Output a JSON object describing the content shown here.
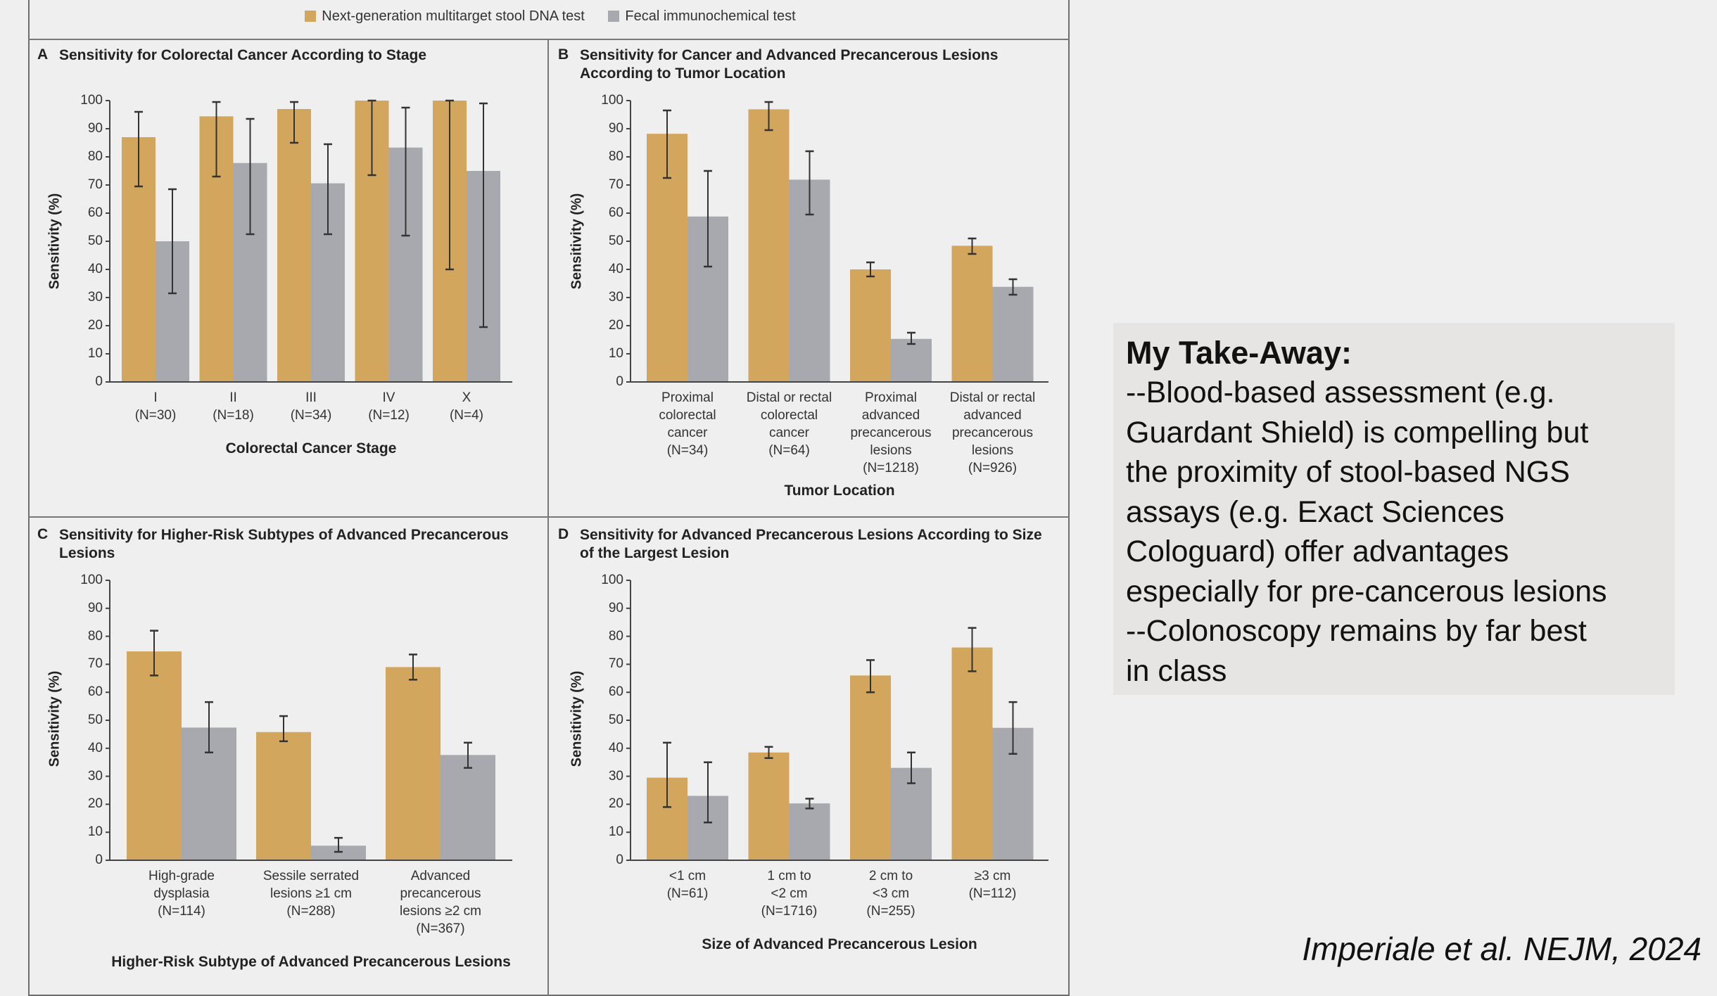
{
  "legend": {
    "items": [
      {
        "label": "Next-generation multitarget stool DNA test",
        "color": "#d3a65e"
      },
      {
        "label": "Fecal immunochemical test",
        "color": "#a8a9ae"
      }
    ]
  },
  "chart_data": [
    {
      "type": "bar",
      "panel_label": "A",
      "title": "Sensitivity for Colorectal Cancer According to Stage",
      "xlabel": "Colorectal Cancer Stage",
      "ylabel": "Sensitivity (%)",
      "ylim": [
        0,
        100
      ],
      "yticks": [
        "0",
        "10",
        "20",
        "30",
        "40",
        "50",
        "60",
        "70",
        "80",
        "90",
        "100"
      ],
      "categories": [
        "I\n(N=30)",
        "II\n(N=18)",
        "III\n(N=34)",
        "IV\n(N=12)",
        "X\n(N=4)"
      ],
      "series": [
        {
          "name": "Next-generation multitarget stool DNA test",
          "values": [
            87,
            94.4,
            97,
            100,
            100
          ],
          "ci_low": [
            69.5,
            73,
            85,
            73.5,
            40
          ],
          "ci_high": [
            96,
            99.5,
            99.5,
            100,
            100
          ]
        },
        {
          "name": "Fecal immunochemical test",
          "values": [
            50,
            77.8,
            70.6,
            83.3,
            75
          ],
          "ci_low": [
            31.5,
            52.5,
            52.5,
            52,
            19.5
          ],
          "ci_high": [
            68.5,
            93.5,
            84.5,
            97.5,
            99
          ]
        }
      ]
    },
    {
      "type": "bar",
      "panel_label": "B",
      "title": "Sensitivity for Cancer and Advanced Precancerous Lesions According to Tumor Location",
      "xlabel": "Tumor Location",
      "ylabel": "Sensitivity (%)",
      "ylim": [
        0,
        100
      ],
      "yticks": [
        "0",
        "10",
        "20",
        "30",
        "40",
        "50",
        "60",
        "70",
        "80",
        "90",
        "100"
      ],
      "categories": [
        "Proximal\ncolorectal\ncancer\n(N=34)",
        "Distal or rectal\ncolorectal\ncancer\n(N=64)",
        "Proximal\nadvanced\nprecancerous\nlesions\n(N=1218)",
        "Distal or rectal\nadvanced\nprecancerous\nlesions\n(N=926)"
      ],
      "series": [
        {
          "name": "Next-generation multitarget stool DNA test",
          "values": [
            88.2,
            96.9,
            40,
            48.4
          ],
          "ci_low": [
            72.5,
            89.5,
            37.5,
            45.5
          ],
          "ci_high": [
            96.5,
            99.5,
            42.5,
            51
          ]
        },
        {
          "name": "Fecal immunochemical test",
          "values": [
            58.8,
            71.9,
            15.3,
            33.8
          ],
          "ci_low": [
            41,
            59.5,
            13.5,
            31
          ],
          "ci_high": [
            75,
            82,
            17.5,
            36.5
          ]
        }
      ]
    },
    {
      "type": "bar",
      "panel_label": "C",
      "title": "Sensitivity for Higher-Risk Subtypes of Advanced Precancerous Lesions",
      "xlabel": "Higher-Risk Subtype of Advanced Precancerous Lesions",
      "ylabel": "Sensitivity (%)",
      "ylim": [
        0,
        100
      ],
      "yticks": [
        "0",
        "10",
        "20",
        "30",
        "40",
        "50",
        "60",
        "70",
        "80",
        "90",
        "100"
      ],
      "categories": [
        "High-grade\ndysplasia\n(N=114)",
        "Sessile serrated\nlesions ≥1 cm\n(N=288)",
        "Advanced\nprecancerous\nlesions ≥2 cm\n(N=367)"
      ],
      "series": [
        {
          "name": "Next-generation multitarget stool DNA test",
          "values": [
            74.6,
            45.8,
            69
          ],
          "ci_low": [
            66,
            42.5,
            64.5
          ],
          "ci_high": [
            82,
            51.5,
            73.5
          ]
        },
        {
          "name": "Fecal immunochemical test",
          "values": [
            47.4,
            5.2,
            37.6
          ],
          "ci_low": [
            38.5,
            3,
            33
          ],
          "ci_high": [
            56.5,
            8,
            42
          ]
        }
      ]
    },
    {
      "type": "bar",
      "panel_label": "D",
      "title": "Sensitivity for Advanced Precancerous Lesions According to Size of the Largest Lesion",
      "xlabel": "Size of Advanced Precancerous Lesion",
      "ylabel": "Sensitivity (%)",
      "ylim": [
        0,
        100
      ],
      "yticks": [
        "0",
        "10",
        "20",
        "30",
        "40",
        "50",
        "60",
        "70",
        "80",
        "90",
        "100"
      ],
      "categories": [
        "<1 cm\n(N=61)",
        "1 cm to\n<2 cm\n(N=1716)",
        "2 cm to\n<3 cm\n(N=255)",
        "≥3 cm\n(N=112)"
      ],
      "series": [
        {
          "name": "Next-generation multitarget stool DNA test",
          "values": [
            29.5,
            38.5,
            66,
            76
          ],
          "ci_low": [
            19,
            36.5,
            60,
            67.5
          ],
          "ci_high": [
            42,
            40.5,
            71.5,
            83
          ]
        },
        {
          "name": "Fecal immunochemical test",
          "values": [
            23,
            20.3,
            33,
            47.3
          ],
          "ci_low": [
            13.5,
            18.5,
            27.5,
            38
          ],
          "ci_high": [
            35,
            22,
            38.5,
            56.5
          ]
        }
      ]
    }
  ],
  "takeaway": {
    "title": "My Take-Away:",
    "body": "--Blood-based assessment (e.g.\nGuardant Shield) is compelling but\nthe proximity of stool-based NGS\nassays (e.g. Exact Sciences\nCologuard) offer advantages\nespecially for pre-cancerous lesions\n--Colonoscopy remains by far best\nin class"
  },
  "citation": "Imperiale et al. NEJM, 2024"
}
